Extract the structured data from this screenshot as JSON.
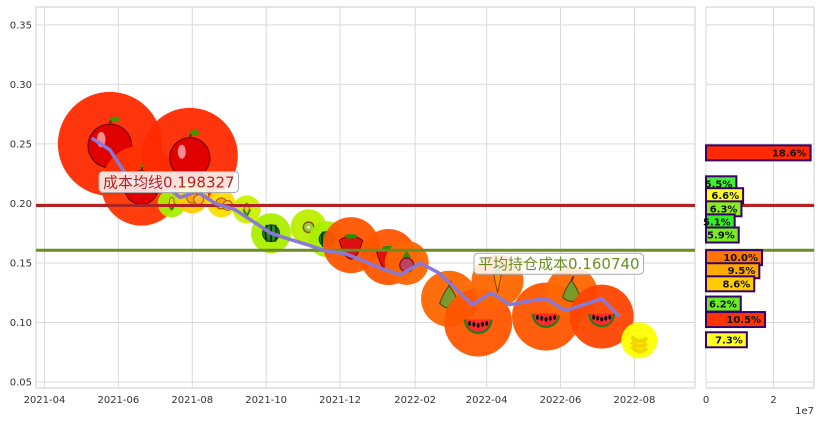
{
  "chart_data": [
    {
      "type": "line",
      "title": "",
      "xlabel": "",
      "ylabel": "",
      "ylim": [
        0.045,
        0.365
      ],
      "xlim": [
        "2021-03-25",
        "2022-09-20"
      ],
      "grid": true,
      "x_tick_labels": [
        "2021-04",
        "2021-06",
        "2021-08",
        "2021-10",
        "2021-12",
        "2022-02",
        "2022-04",
        "2022-06",
        "2022-08"
      ],
      "x_tick_dates": [
        "2021-04-01",
        "2021-06-01",
        "2021-08-01",
        "2021-10-01",
        "2021-12-01",
        "2022-02-01",
        "2022-04-01",
        "2022-06-01",
        "2022-08-01"
      ],
      "y_ticks": [
        0.05,
        0.1,
        0.15,
        0.2,
        0.25,
        0.3,
        0.35
      ],
      "y_tick_labels": [
        "0.05",
        "0.10",
        "0.15",
        "0.20",
        "0.25",
        "0.30",
        "0.35"
      ],
      "series": [
        {
          "color": "#8878d8",
          "x": [
            "2021-05-10",
            "2021-05-25",
            "2021-06-10",
            "2021-06-25",
            "2021-07-10",
            "2021-07-22",
            "2021-08-05",
            "2021-08-20",
            "2021-09-05",
            "2021-09-20",
            "2021-10-05",
            "2021-10-20",
            "2021-11-05",
            "2021-11-20",
            "2021-12-05",
            "2021-12-20",
            "2022-01-05",
            "2022-01-20",
            "2022-02-05",
            "2022-02-20",
            "2022-03-05",
            "2022-03-20",
            "2022-04-05",
            "2022-04-20",
            "2022-05-05",
            "2022-05-20",
            "2022-06-05",
            "2022-06-20",
            "2022-07-05",
            "2022-07-20"
          ],
          "y": [
            0.255,
            0.245,
            0.22,
            0.215,
            0.215,
            0.205,
            0.21,
            0.2,
            0.195,
            0.185,
            0.175,
            0.17,
            0.165,
            0.16,
            0.158,
            0.152,
            0.145,
            0.14,
            0.15,
            0.142,
            0.13,
            0.115,
            0.125,
            0.115,
            0.118,
            0.12,
            0.11,
            0.115,
            0.12,
            0.105
          ]
        }
      ],
      "horizontal_lines": [
        {
          "label": "成本均线0.198327",
          "value": 0.198327,
          "color": "#b22222"
        },
        {
          "label": "平均持仓成本0.160740",
          "value": 0.16074,
          "color": "#6b8e23"
        }
      ],
      "markers": [
        {
          "x": "2021-05-25",
          "y": 0.25,
          "size": 52,
          "color": "#ff2a00",
          "icon": "apple-icon"
        },
        {
          "x": "2021-06-20",
          "y": 0.215,
          "size": 40,
          "color": "#ff3300",
          "icon": "apple-icon"
        },
        {
          "x": "2021-07-30",
          "y": 0.24,
          "size": 48,
          "color": "#ff2a00",
          "icon": "apple-icon"
        },
        {
          "x": "2021-07-15",
          "y": 0.2,
          "size": 14,
          "color": "#aaee00",
          "icon": "corn-icon"
        },
        {
          "x": "2021-08-01",
          "y": 0.205,
          "size": 16,
          "color": "#ffcc00",
          "icon": "orange-icon"
        },
        {
          "x": "2021-08-25",
          "y": 0.2,
          "size": 14,
          "color": "#ffdd00",
          "icon": "orange-icon"
        },
        {
          "x": "2021-09-15",
          "y": 0.195,
          "size": 14,
          "color": "#ccee00",
          "icon": "corn-icon"
        },
        {
          "x": "2021-10-05",
          "y": 0.175,
          "size": 20,
          "color": "#aaee00",
          "icon": "melon-icon"
        },
        {
          "x": "2021-11-05",
          "y": 0.18,
          "size": 18,
          "color": "#bbee00",
          "icon": "kiwi-icon"
        },
        {
          "x": "2021-11-20",
          "y": 0.17,
          "size": 18,
          "color": "#aaee00",
          "icon": "melon-icon"
        },
        {
          "x": "2021-12-10",
          "y": 0.165,
          "size": 28,
          "color": "#ff5500",
          "icon": "strawberry-icon"
        },
        {
          "x": "2022-01-10",
          "y": 0.155,
          "size": 28,
          "color": "#ff5500",
          "icon": "strawberry-icon"
        },
        {
          "x": "2022-01-25",
          "y": 0.15,
          "size": 22,
          "color": "#ff6600",
          "icon": "radish-icon"
        },
        {
          "x": "2022-03-01",
          "y": 0.12,
          "size": 28,
          "color": "#ff6600",
          "icon": "pear-icon"
        },
        {
          "x": "2022-03-25",
          "y": 0.1,
          "size": 34,
          "color": "#ff5500",
          "icon": "watermelon-icon"
        },
        {
          "x": "2022-04-10",
          "y": 0.135,
          "size": 26,
          "color": "#ff6600",
          "icon": "carrot-icon"
        },
        {
          "x": "2022-05-20",
          "y": 0.105,
          "size": 34,
          "color": "#ff5500",
          "icon": "watermelon-icon"
        },
        {
          "x": "2022-06-10",
          "y": 0.125,
          "size": 26,
          "color": "#ff6600",
          "icon": "pear-icon"
        },
        {
          "x": "2022-07-05",
          "y": 0.105,
          "size": 32,
          "color": "#ff4400",
          "icon": "watermelon-icon"
        },
        {
          "x": "2022-08-05",
          "y": 0.085,
          "size": 18,
          "color": "#ffff00",
          "icon": "banana-icon"
        }
      ]
    },
    {
      "type": "bar",
      "orientation": "horizontal",
      "xlabel": "",
      "x_scale_label": "1e7",
      "x_ticks": [
        0,
        2
      ],
      "x_tick_labels": [
        "0",
        "2"
      ],
      "xlim": [
        0,
        3.2
      ],
      "ylim": [
        0.045,
        0.365
      ],
      "bars": [
        {
          "label": "18.6%",
          "y": 0.2425,
          "value": 3.1,
          "color": "#ff2a00"
        },
        {
          "label": "5.5%",
          "y": 0.2165,
          "value": 0.9,
          "color": "#44ee33"
        },
        {
          "label": "6.6%",
          "y": 0.2065,
          "value": 1.1,
          "color": "#ffff22"
        },
        {
          "label": "6.3%",
          "y": 0.1955,
          "value": 1.05,
          "color": "#88ee22"
        },
        {
          "label": "5.1%",
          "y": 0.1845,
          "value": 0.85,
          "color": "#33ee22"
        },
        {
          "label": "5.9%",
          "y": 0.1735,
          "value": 0.97,
          "color": "#77ee22"
        },
        {
          "label": "10.0%",
          "y": 0.1545,
          "value": 1.66,
          "color": "#ff7700"
        },
        {
          "label": "9.5%",
          "y": 0.1435,
          "value": 1.58,
          "color": "#ffaa00"
        },
        {
          "label": "8.6%",
          "y": 0.1325,
          "value": 1.43,
          "color": "#ffcc00"
        },
        {
          "label": "6.2%",
          "y": 0.1155,
          "value": 1.03,
          "color": "#66ee22"
        },
        {
          "label": "10.5%",
          "y": 0.1025,
          "value": 1.75,
          "color": "#ff3300"
        },
        {
          "label": "7.3%",
          "y": 0.0855,
          "value": 1.21,
          "color": "#ffff22"
        }
      ]
    }
  ]
}
